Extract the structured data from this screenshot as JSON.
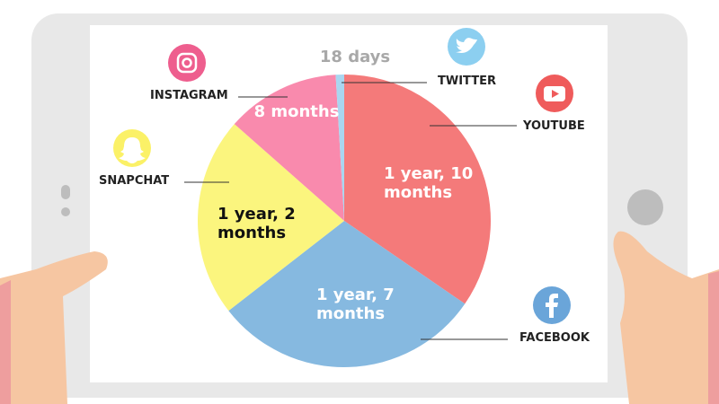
{
  "chart_data": {
    "type": "pie",
    "categories": [
      "YOUTUBE",
      "FACEBOOK",
      "SNAPCHAT",
      "INSTAGRAM",
      "TWITTER"
    ],
    "values": [
      669,
      578,
      426,
      243,
      18
    ],
    "value_labels": [
      "1 year, 10 months",
      "1 year, 7 months",
      "1 year, 2 months",
      "8 months",
      "18 days"
    ],
    "colors": [
      "#f47a7a",
      "#86b9e0",
      "#fbf57e",
      "#f98aad",
      "#a9d6f0"
    ]
  }
}
